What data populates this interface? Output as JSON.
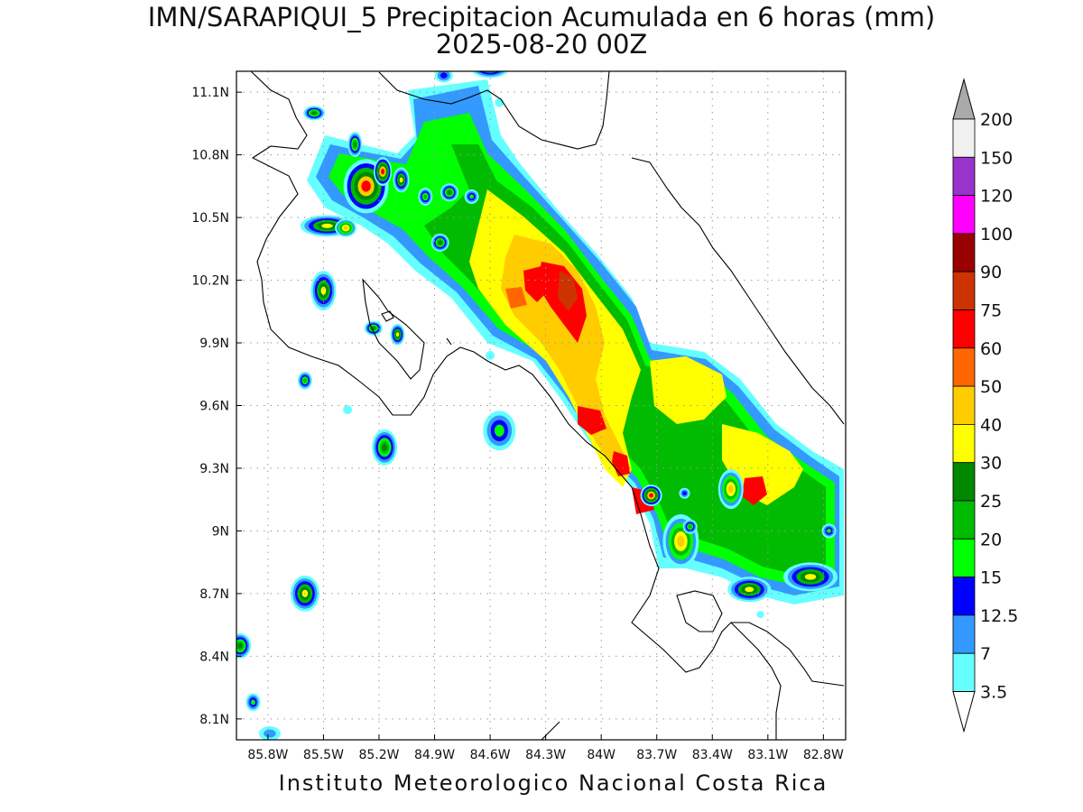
{
  "title": "IMN/SARAPIQUI_5 Precipitacion Acumulada en 6 horas (mm)",
  "subtitle": "2025-08-20 00Z",
  "footer": "Instituto Meteorologico Nacional Costa Rica",
  "map": {
    "lon_range": [
      -85.97,
      -82.68
    ],
    "lat_range": [
      8.0,
      11.2
    ],
    "lat_ticks": [
      {
        "value": 11.1,
        "label": "11.1N"
      },
      {
        "value": 10.8,
        "label": "10.8N"
      },
      {
        "value": 10.5,
        "label": "10.5N"
      },
      {
        "value": 10.2,
        "label": "10.2N"
      },
      {
        "value": 9.9,
        "label": "9.9N"
      },
      {
        "value": 9.6,
        "label": "9.6N"
      },
      {
        "value": 9.3,
        "label": "9.3N"
      },
      {
        "value": 9.0,
        "label": "9N"
      },
      {
        "value": 8.7,
        "label": "8.7N"
      },
      {
        "value": 8.4,
        "label": "8.4N"
      },
      {
        "value": 8.1,
        "label": "8.1N"
      }
    ],
    "lon_ticks": [
      {
        "value": -85.8,
        "label": "85.8W"
      },
      {
        "value": -85.5,
        "label": "85.5W"
      },
      {
        "value": -85.2,
        "label": "85.2W"
      },
      {
        "value": -84.9,
        "label": "84.9W"
      },
      {
        "value": -84.6,
        "label": "84.6W"
      },
      {
        "value": -84.3,
        "label": "84.3W"
      },
      {
        "value": -84.0,
        "label": "84W"
      },
      {
        "value": -83.7,
        "label": "83.7W"
      },
      {
        "value": -83.4,
        "label": "83.4W"
      },
      {
        "value": -83.1,
        "label": "83.1W"
      },
      {
        "value": -82.8,
        "label": "82.8W"
      }
    ],
    "grid": true,
    "coast_color": "#000000",
    "grid_color": "#999999"
  },
  "colorbar": {
    "labels": [
      "200",
      "150",
      "120",
      "100",
      "90",
      "75",
      "60",
      "50",
      "40",
      "30",
      "25",
      "20",
      "15",
      "12.5",
      "7",
      "3.5"
    ],
    "colors": [
      "#f0f0f0",
      "#9933cc",
      "#ff00ff",
      "#990000",
      "#cc3300",
      "#ff0000",
      "#ff6600",
      "#ffcc00",
      "#ffff00",
      "#008800",
      "#00bb00",
      "#00ff00",
      "#0000ff",
      "#3399ff",
      "#66ffff"
    ],
    "top_color": "#aaaaaa",
    "bottom_color": "#ffffff"
  }
}
